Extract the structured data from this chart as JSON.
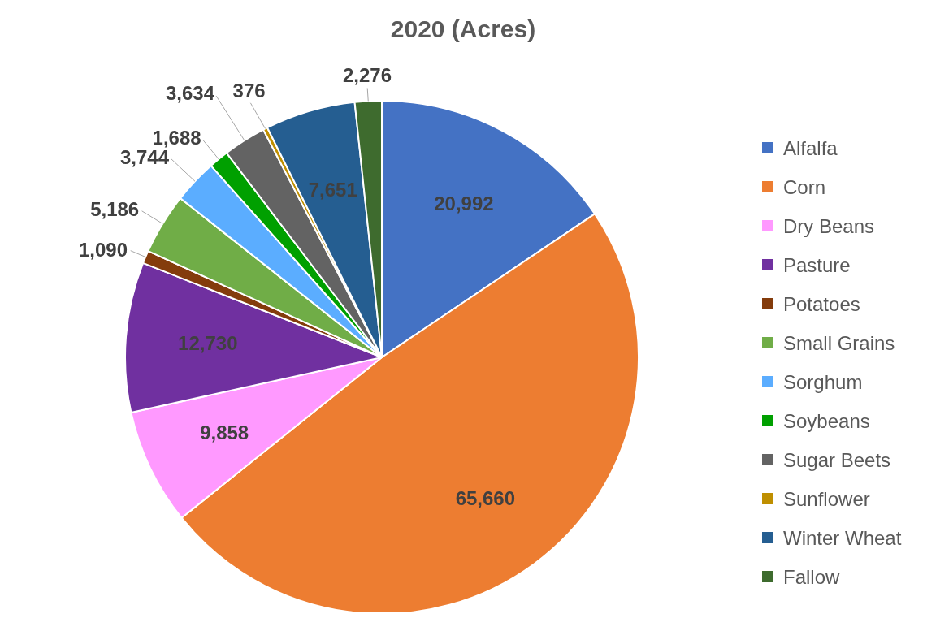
{
  "chart_data": {
    "type": "pie",
    "title": "2020 (Acres)",
    "categories": [
      "Alfalfa",
      "Corn",
      "Dry Beans",
      "Pasture",
      "Potatoes",
      "Small Grains",
      "Sorghum",
      "Soybeans",
      "Sugar Beets",
      "Sunflower",
      "Winter Wheat",
      "Fallow"
    ],
    "values": [
      20992,
      65660,
      9858,
      12730,
      1090,
      5186,
      3744,
      1688,
      3634,
      376,
      7651,
      2276
    ],
    "colors": [
      "#4472c4",
      "#ed7d31",
      "#ff99ff",
      "#7030a0",
      "#843c0c",
      "#70ad47",
      "#5badff",
      "#00a000",
      "#636363",
      "#bf8f00",
      "#255e91",
      "#3e6b2e"
    ],
    "value_labels": [
      "20,992",
      "65,660",
      "9,858",
      "12,730",
      "1,090",
      "5,186",
      "3,744",
      "1,688",
      "3,634",
      "376",
      "7,651",
      "2,276"
    ],
    "legend": "right"
  }
}
